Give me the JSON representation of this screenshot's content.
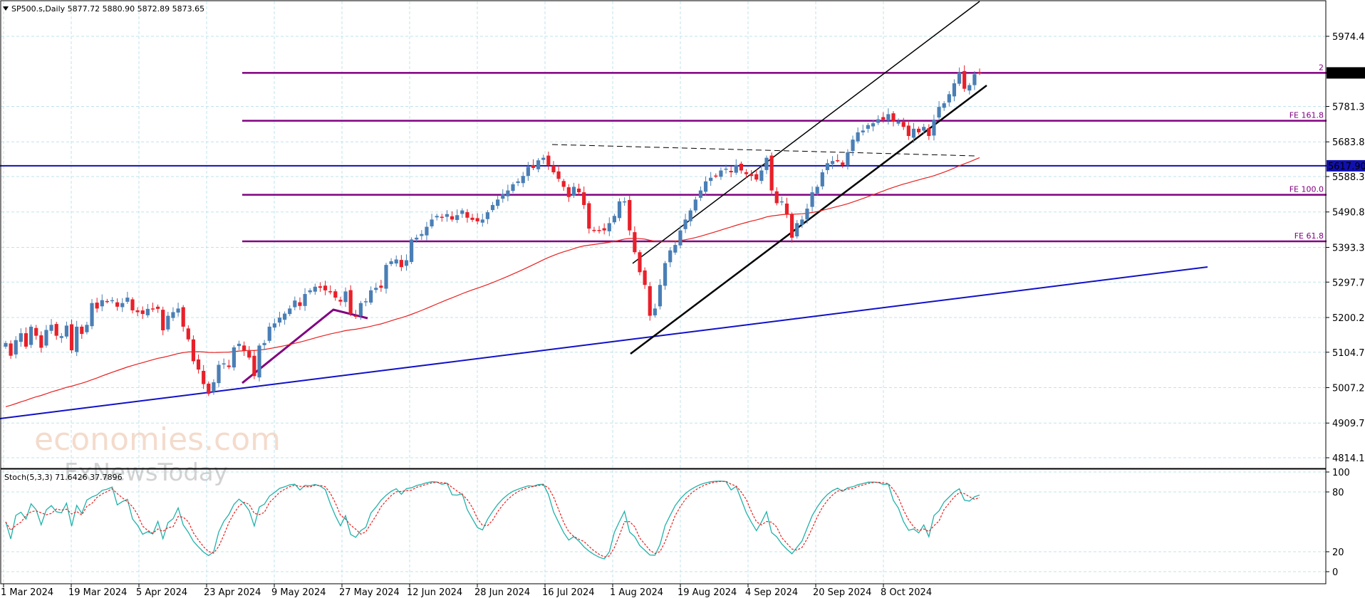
{
  "header": {
    "symbol_info": "SP500.s,Daily  5877.72 5880.90 5872.89 5873.65"
  },
  "price_axis": {
    "ticks": [
      "5974.40",
      "5781.35",
      "5683.85",
      "5588.30",
      "5490.80",
      "5393.30",
      "5297.75",
      "5200.25",
      "5104.70",
      "5007.20",
      "4909.70",
      "4814.15"
    ],
    "current_price_label": "5873.65",
    "level_label": "5617.90"
  },
  "time_axis": {
    "ticks": [
      "1 Mar 2024",
      "19 Mar 2024",
      "5 Apr 2024",
      "23 Apr 2024",
      "9 May 2024",
      "27 May 2024",
      "12 Jun 2024",
      "28 Jun 2024",
      "16 Jul 2024",
      "1 Aug 2024",
      "19 Aug 2024",
      "4 Sep 2024",
      "20 Sep 2024",
      "8 Oct 2024"
    ]
  },
  "fib_labels": {
    "fe2": "2",
    "fe161": "FE 161.8",
    "fe100": "FE 100.0",
    "fe61": "FE 61.8"
  },
  "indicator": {
    "label": "Stoch(5,3,3) 71.6426 37.7896",
    "ticks": [
      "100",
      "80",
      "20",
      "0"
    ]
  },
  "watermark": {
    "brand": "economies.com",
    "sub": "FxNewsToday"
  },
  "colors": {
    "bull": "#4a7fb5",
    "bear": "#e8202a",
    "fib": "#800080",
    "ma": "#e82020",
    "blue_level": "#1010b0",
    "stoch_k": "#20b2aa",
    "stoch_d": "#e82020",
    "grid": "#bfe3ec"
  },
  "chart_data": {
    "type": "candlestick",
    "title": "SP500.s,Daily",
    "ohlc_last": {
      "open": 5877.72,
      "high": 5880.9,
      "low": 5872.89,
      "close": 5873.65
    },
    "ylim": [
      4790,
      6040
    ],
    "levels": [
      {
        "name": "2",
        "value": 5873.65
      },
      {
        "name": "FE 161.8",
        "value": 5742
      },
      {
        "name": "5617.90",
        "value": 5617.9
      },
      {
        "name": "FE 100.0",
        "value": 5538
      },
      {
        "name": "FE 61.8",
        "value": 5410
      }
    ],
    "moving_average_color": "#e82020",
    "series": [
      {
        "name": "closes",
        "values": [
          5130,
          5095,
          5138,
          5157,
          5120,
          5175,
          5150,
          5117,
          5166,
          5180,
          5150,
          5149,
          5178,
          5110,
          5175,
          5155,
          5180,
          5240,
          5225,
          5248,
          5245,
          5248,
          5230,
          5240,
          5255,
          5220,
          5215,
          5210,
          5224,
          5224,
          5224,
          5165,
          5205,
          5215,
          5225,
          5175,
          5140,
          5080,
          5057,
          5017,
          4990,
          5022,
          5070,
          5074,
          5064,
          5118,
          5128,
          5108,
          5090,
          5039,
          5123,
          5130,
          5175,
          5184,
          5200,
          5211,
          5225,
          5247,
          5232,
          5265,
          5275,
          5285,
          5282,
          5275,
          5270,
          5255,
          5244,
          5272,
          5210,
          5205,
          5240,
          5245,
          5275,
          5282,
          5282,
          5345,
          5355,
          5360,
          5339,
          5358,
          5415,
          5420,
          5430,
          5450,
          5470,
          5480,
          5475,
          5485,
          5470,
          5482,
          5495,
          5475,
          5469,
          5465,
          5470,
          5490,
          5510,
          5525,
          5540,
          5550,
          5567,
          5575,
          5590,
          5615,
          5612,
          5633,
          5640,
          5620,
          5600,
          5582,
          5560,
          5532,
          5560,
          5545,
          5510,
          5445,
          5440,
          5440,
          5440,
          5460,
          5480,
          5520,
          5520,
          5440,
          5380,
          5325,
          5290,
          5205,
          5225,
          5290,
          5350,
          5385,
          5400,
          5440,
          5470,
          5495,
          5525,
          5550,
          5575,
          5585,
          5590,
          5605,
          5610,
          5600,
          5620,
          5605,
          5595,
          5590,
          5580,
          5605,
          5640,
          5550,
          5515,
          5520,
          5485,
          5420,
          5460,
          5470,
          5500,
          5545,
          5560,
          5600,
          5625,
          5631,
          5633,
          5620,
          5655,
          5690,
          5710,
          5715,
          5730,
          5735,
          5746,
          5745,
          5760,
          5740,
          5740,
          5725,
          5700,
          5720,
          5710,
          5725,
          5700,
          5745,
          5780,
          5790,
          5815,
          5845,
          5875,
          5830,
          5840,
          5870,
          5873.65
        ]
      }
    ]
  }
}
